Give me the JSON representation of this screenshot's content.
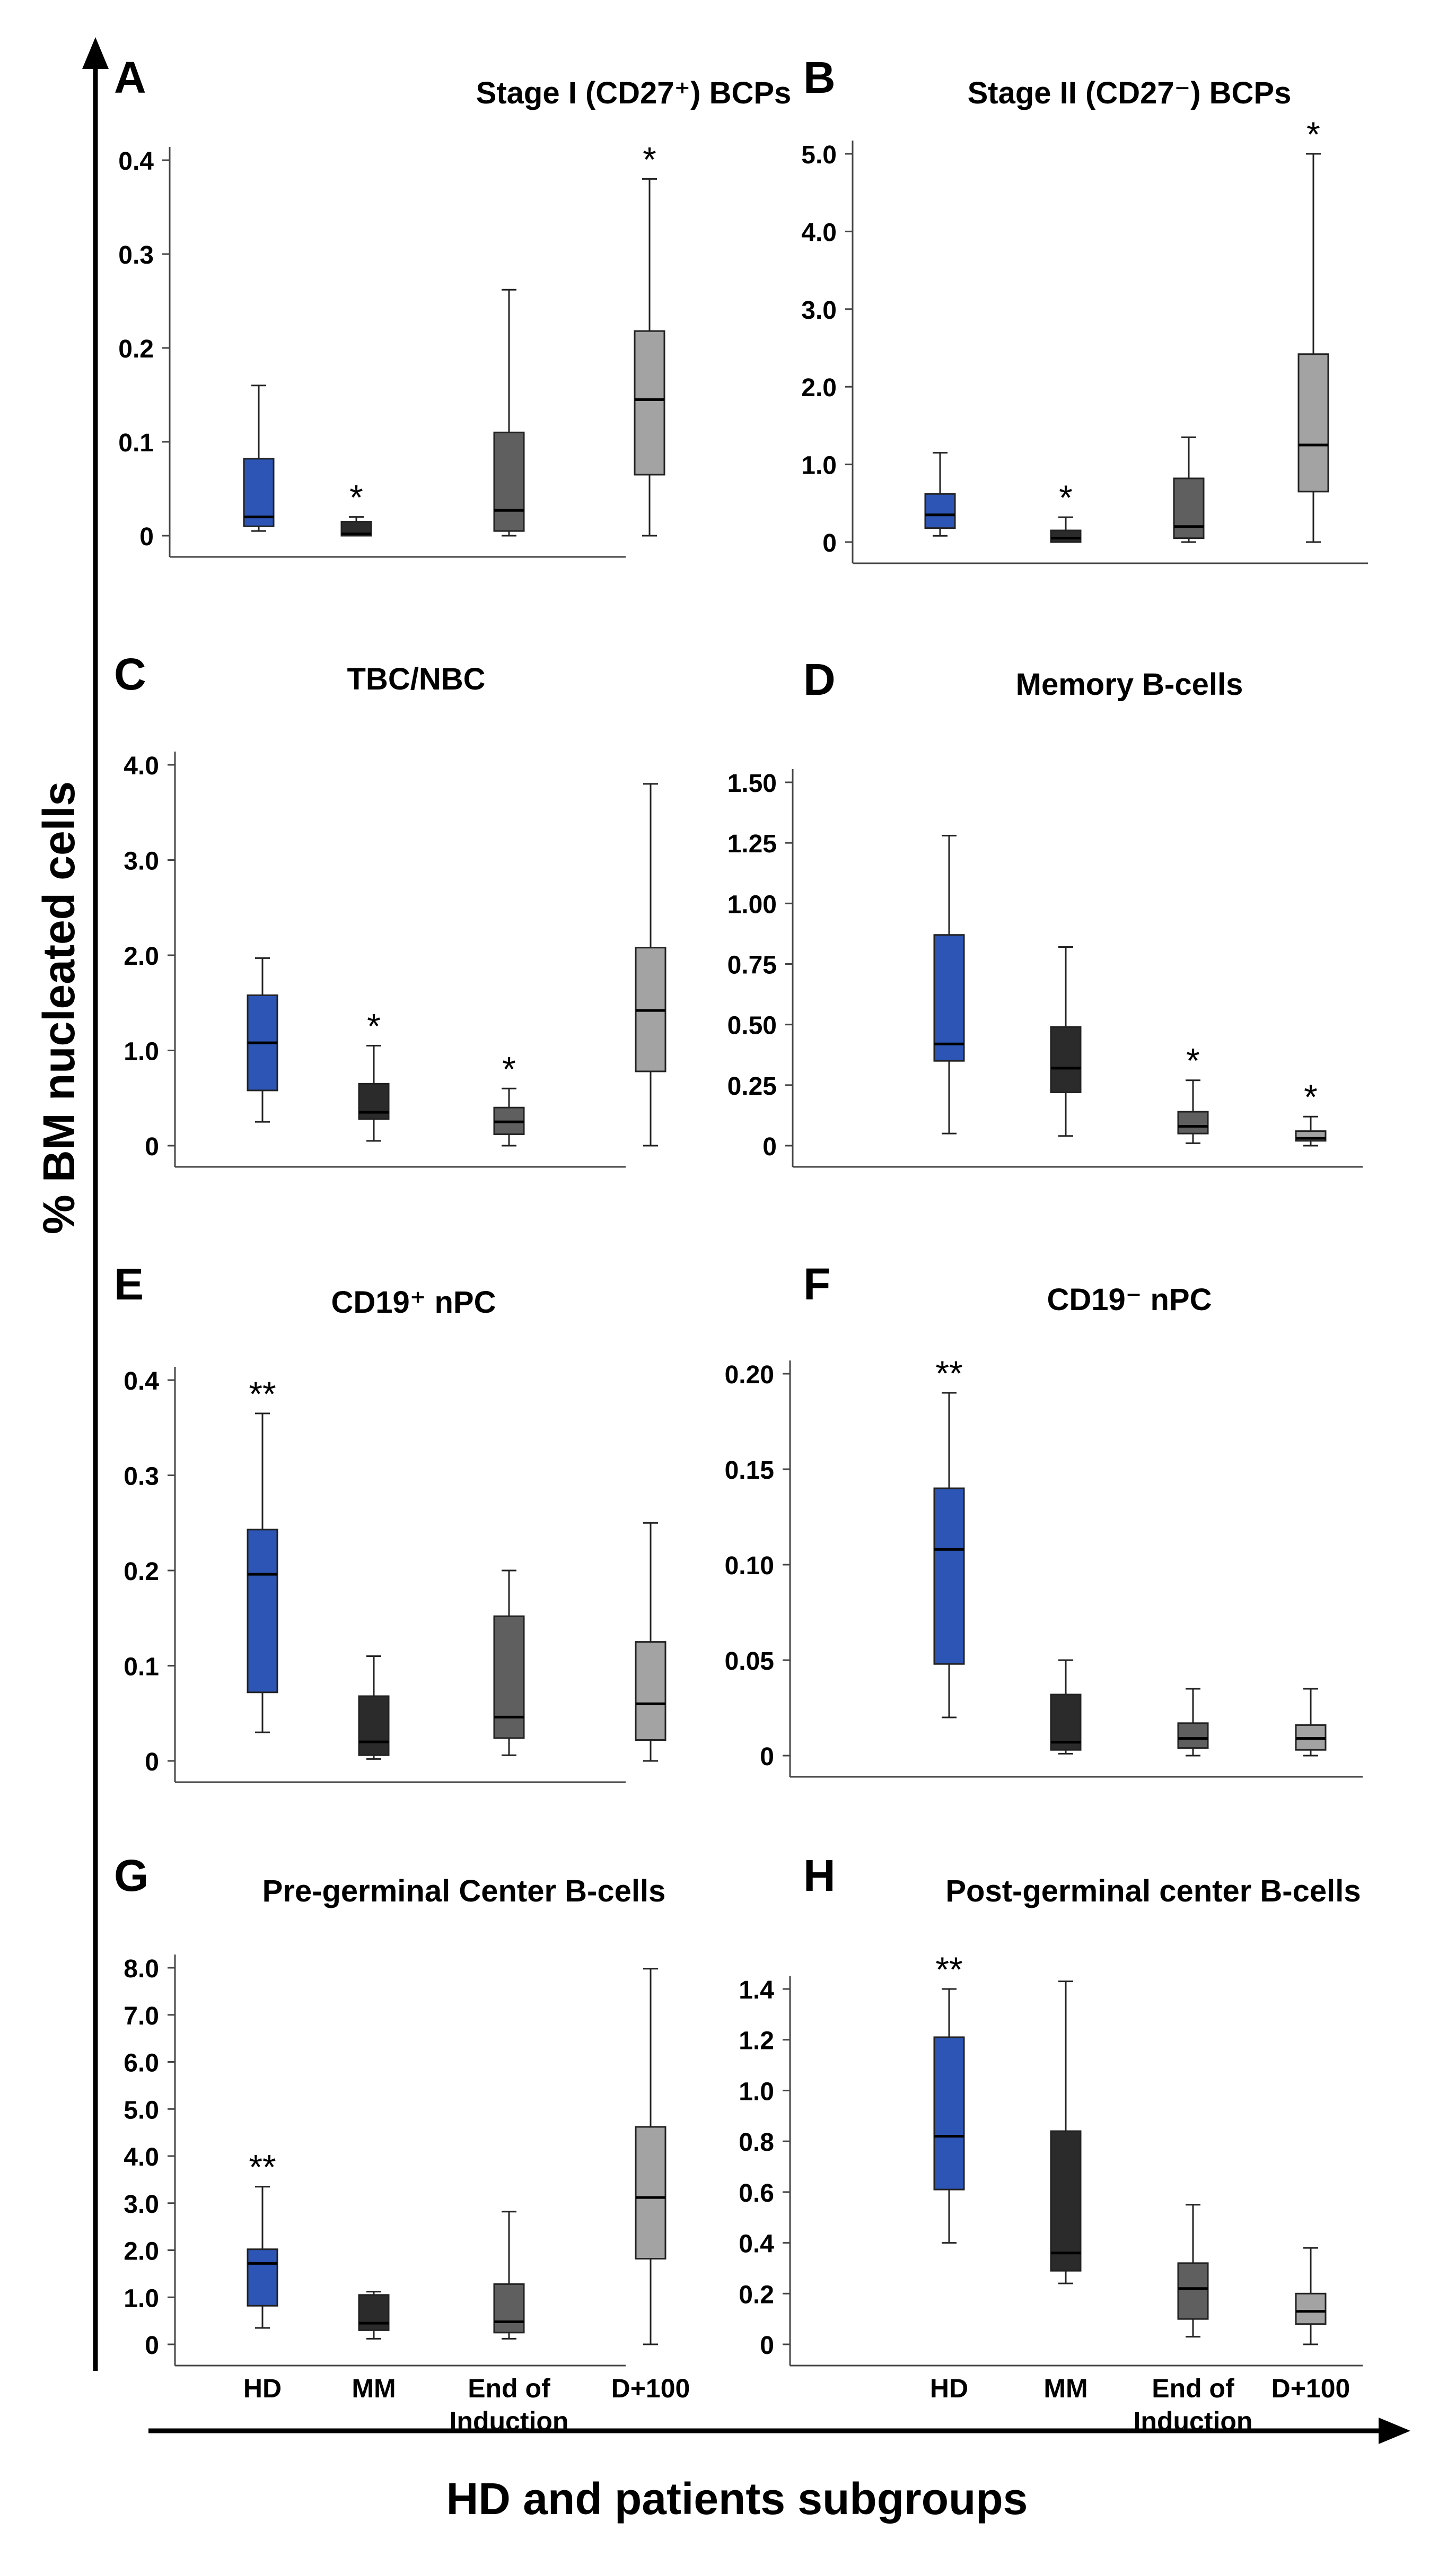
{
  "figure": {
    "y_axis_label": "% BM nucleated cells",
    "x_axis_label": "HD and patients subgroups",
    "group_labels": [
      "HD",
      "MM",
      "End of\nInduction",
      "D+100"
    ],
    "group_colors": [
      "#2d55b5",
      "#2b2b2b",
      "#5f5f5f",
      "#a3a3a3"
    ]
  },
  "chart_data": [
    {
      "type": "box",
      "panel": "A",
      "title": "Stage I (CD27⁺) BCPs",
      "ylim": [
        0,
        0.4
      ],
      "yticks": [
        0,
        0.1,
        0.2,
        0.3,
        0.4
      ],
      "ytick_labels": [
        "0",
        "0.1",
        "0.2",
        "0.3",
        "0.4"
      ],
      "categories": [
        "HD",
        "MM",
        "End of Induction",
        "D+100"
      ],
      "boxes": [
        {
          "min": 0.005,
          "q1": 0.01,
          "median": 0.02,
          "q3": 0.082,
          "max": 0.16,
          "mark": ""
        },
        {
          "min": 0.0,
          "q1": 0.0,
          "median": 0.002,
          "q3": 0.015,
          "max": 0.02,
          "mark": "*"
        },
        {
          "min": 0.0,
          "q1": 0.005,
          "median": 0.027,
          "q3": 0.11,
          "max": 0.262,
          "mark": ""
        },
        {
          "min": 0.0,
          "q1": 0.065,
          "median": 0.145,
          "q3": 0.218,
          "max": 0.38,
          "mark": "*"
        }
      ]
    },
    {
      "type": "box",
      "panel": "B",
      "title": "Stage II (CD27⁻) BCPs",
      "ylim": [
        0,
        5.0
      ],
      "yticks": [
        0,
        1,
        2,
        3,
        4,
        5
      ],
      "ytick_labels": [
        "0",
        "1.0",
        "2.0",
        "3.0",
        "4.0",
        "5.0"
      ],
      "categories": [
        "HD",
        "MM",
        "End of Induction",
        "D+100"
      ],
      "boxes": [
        {
          "min": 0.08,
          "q1": 0.18,
          "median": 0.35,
          "q3": 0.62,
          "max": 1.15,
          "mark": ""
        },
        {
          "min": 0.0,
          "q1": 0.0,
          "median": 0.05,
          "q3": 0.15,
          "max": 0.32,
          "mark": "*"
        },
        {
          "min": 0.0,
          "q1": 0.05,
          "median": 0.2,
          "q3": 0.82,
          "max": 1.35,
          "mark": ""
        },
        {
          "min": 0.0,
          "q1": 0.65,
          "median": 1.25,
          "q3": 2.42,
          "max": 5.0,
          "mark": "*"
        }
      ]
    },
    {
      "type": "box",
      "panel": "C",
      "title": "TBC/NBC",
      "ylim": [
        0,
        4.0
      ],
      "yticks": [
        0,
        1,
        2,
        3,
        4
      ],
      "ytick_labels": [
        "0",
        "1.0",
        "2.0",
        "3.0",
        "4.0"
      ],
      "categories": [
        "HD",
        "MM",
        "End of Induction",
        "D+100"
      ],
      "boxes": [
        {
          "min": 0.25,
          "q1": 0.58,
          "median": 1.08,
          "q3": 1.58,
          "max": 1.97,
          "mark": ""
        },
        {
          "min": 0.05,
          "q1": 0.28,
          "median": 0.35,
          "q3": 0.65,
          "max": 1.05,
          "mark": "*"
        },
        {
          "min": 0.0,
          "q1": 0.12,
          "median": 0.25,
          "q3": 0.4,
          "max": 0.6,
          "mark": "*"
        },
        {
          "min": 0.0,
          "q1": 0.78,
          "median": 1.42,
          "q3": 2.08,
          "max": 3.8,
          "mark": ""
        }
      ]
    },
    {
      "type": "box",
      "panel": "D",
      "title": "Memory B-cells",
      "ylim": [
        0,
        1.5
      ],
      "yticks": [
        0,
        0.25,
        0.5,
        0.75,
        1.0,
        1.25,
        1.5
      ],
      "ytick_labels": [
        "0",
        "0.25",
        "0.50",
        "0.75",
        "1.00",
        "1.25",
        "1.50"
      ],
      "categories": [
        "HD",
        "MM",
        "End of Induction",
        "D+100"
      ],
      "boxes": [
        {
          "min": 0.05,
          "q1": 0.35,
          "median": 0.42,
          "q3": 0.87,
          "max": 1.28,
          "mark": ""
        },
        {
          "min": 0.04,
          "q1": 0.22,
          "median": 0.32,
          "q3": 0.49,
          "max": 0.82,
          "mark": ""
        },
        {
          "min": 0.01,
          "q1": 0.05,
          "median": 0.08,
          "q3": 0.14,
          "max": 0.27,
          "mark": "*"
        },
        {
          "min": 0.0,
          "q1": 0.02,
          "median": 0.03,
          "q3": 0.06,
          "max": 0.12,
          "mark": "*"
        }
      ]
    },
    {
      "type": "box",
      "panel": "E",
      "title": "CD19⁺ nPC",
      "ylim": [
        0,
        0.4
      ],
      "yticks": [
        0,
        0.1,
        0.2,
        0.3,
        0.4
      ],
      "ytick_labels": [
        "0",
        "0.1",
        "0.2",
        "0.3",
        "0.4"
      ],
      "categories": [
        "HD",
        "MM",
        "End of Induction",
        "D+100"
      ],
      "boxes": [
        {
          "min": 0.03,
          "q1": 0.072,
          "median": 0.196,
          "q3": 0.243,
          "max": 0.365,
          "mark": "**"
        },
        {
          "min": 0.002,
          "q1": 0.006,
          "median": 0.02,
          "q3": 0.068,
          "max": 0.11,
          "mark": ""
        },
        {
          "min": 0.006,
          "q1": 0.024,
          "median": 0.046,
          "q3": 0.152,
          "max": 0.2,
          "mark": ""
        },
        {
          "min": 0.0,
          "q1": 0.022,
          "median": 0.06,
          "q3": 0.125,
          "max": 0.25,
          "mark": ""
        }
      ]
    },
    {
      "type": "box",
      "panel": "F",
      "title": "CD19⁻ nPC",
      "ylim": [
        0,
        0.2
      ],
      "yticks": [
        0,
        0.05,
        0.1,
        0.15,
        0.2
      ],
      "ytick_labels": [
        "0",
        "0.05",
        "0.10",
        "0.15",
        "0.20"
      ],
      "categories": [
        "HD",
        "MM",
        "End of Induction",
        "D+100"
      ],
      "boxes": [
        {
          "min": 0.02,
          "q1": 0.048,
          "median": 0.108,
          "q3": 0.14,
          "max": 0.19,
          "mark": "**"
        },
        {
          "min": 0.001,
          "q1": 0.003,
          "median": 0.007,
          "q3": 0.032,
          "max": 0.05,
          "mark": ""
        },
        {
          "min": 0.0,
          "q1": 0.004,
          "median": 0.009,
          "q3": 0.017,
          "max": 0.035,
          "mark": ""
        },
        {
          "min": 0.0,
          "q1": 0.003,
          "median": 0.009,
          "q3": 0.016,
          "max": 0.035,
          "mark": ""
        }
      ]
    },
    {
      "type": "box",
      "panel": "G",
      "title": "Pre-germinal Center B-cells",
      "ylim": [
        0,
        8.0
      ],
      "yticks": [
        0,
        1,
        2,
        3,
        4,
        5,
        6,
        7,
        8
      ],
      "ytick_labels": [
        "0",
        "1.0",
        "2.0",
        "3.0",
        "4.0",
        "5.0",
        "6.0",
        "7.0",
        "8.0"
      ],
      "categories": [
        "HD",
        "MM",
        "End of Induction",
        "D+100"
      ],
      "boxes": [
        {
          "min": 0.35,
          "q1": 0.82,
          "median": 1.72,
          "q3": 2.02,
          "max": 3.35,
          "mark": "**"
        },
        {
          "min": 0.12,
          "q1": 0.3,
          "median": 0.45,
          "q3": 1.05,
          "max": 1.12,
          "mark": ""
        },
        {
          "min": 0.12,
          "q1": 0.25,
          "median": 0.48,
          "q3": 1.28,
          "max": 2.82,
          "mark": ""
        },
        {
          "min": 0.0,
          "q1": 1.82,
          "median": 3.12,
          "q3": 4.62,
          "max": 7.98,
          "mark": ""
        }
      ]
    },
    {
      "type": "box",
      "panel": "H",
      "title": "Post-germinal center B-cells",
      "ylim": [
        0,
        1.4
      ],
      "yticks": [
        0,
        0.2,
        0.4,
        0.6,
        0.8,
        1.0,
        1.2,
        1.4
      ],
      "ytick_labels": [
        "0",
        "0.2",
        "0.4",
        "0.6",
        "0.8",
        "1.0",
        "1.2",
        "1.4"
      ],
      "categories": [
        "HD",
        "MM",
        "End of Induction",
        "D+100"
      ],
      "boxes": [
        {
          "min": 0.4,
          "q1": 0.61,
          "median": 0.82,
          "q3": 1.21,
          "max": 1.4,
          "mark": "**"
        },
        {
          "min": 0.24,
          "q1": 0.29,
          "median": 0.36,
          "q3": 0.84,
          "max": 1.43,
          "mark": ""
        },
        {
          "min": 0.03,
          "q1": 0.1,
          "median": 0.22,
          "q3": 0.32,
          "max": 0.55,
          "mark": ""
        },
        {
          "min": 0.0,
          "q1": 0.08,
          "median": 0.13,
          "q3": 0.2,
          "max": 0.38,
          "mark": ""
        }
      ]
    }
  ]
}
